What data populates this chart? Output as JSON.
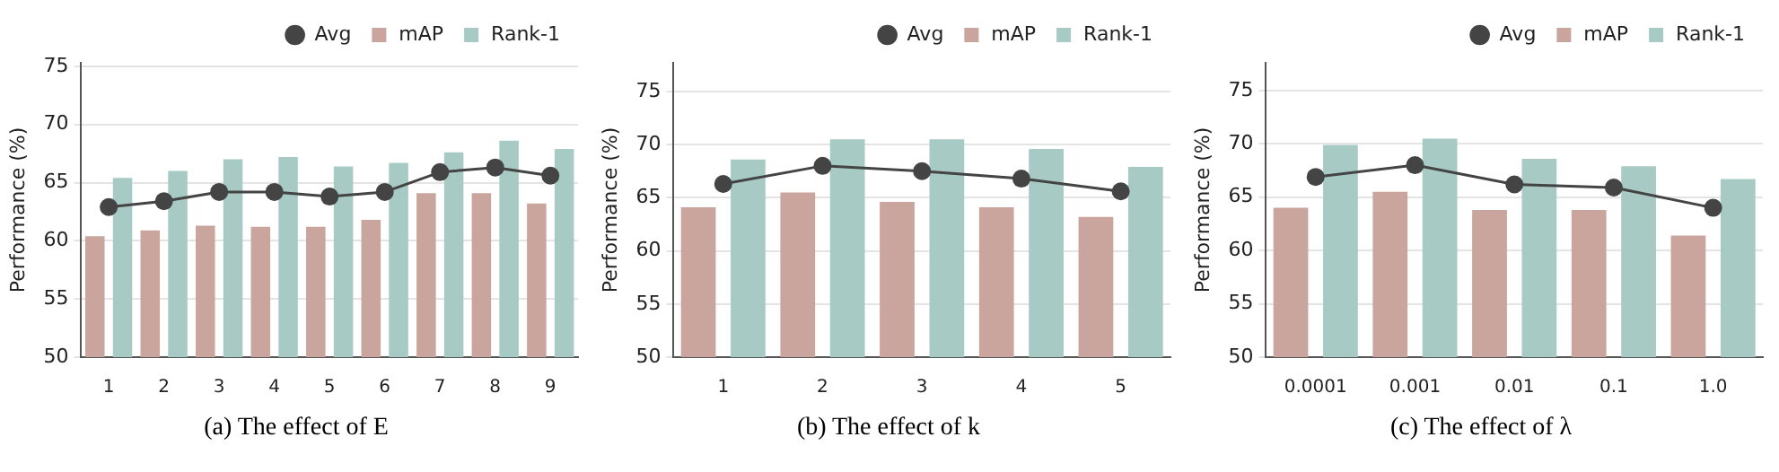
{
  "chart_data": [
    {
      "type": "bar",
      "title": "(a) The effect of E",
      "ylabel": "Performance (%)",
      "categories": [
        "1",
        "2",
        "3",
        "4",
        "5",
        "6",
        "7",
        "8",
        "9"
      ],
      "series": [
        {
          "name": "Avg",
          "type": "line",
          "color": "#444444",
          "values": [
            62.9,
            63.4,
            64.2,
            64.2,
            63.8,
            64.2,
            65.9,
            66.3,
            65.6
          ]
        },
        {
          "name": "mAP",
          "color": "#c9a59d",
          "values": [
            60.4,
            60.9,
            61.3,
            61.2,
            61.2,
            61.8,
            64.1,
            64.1,
            63.2
          ]
        },
        {
          "name": "Rank-1",
          "color": "#a7cbc4",
          "values": [
            65.4,
            66.0,
            67.0,
            67.2,
            66.4,
            66.7,
            67.6,
            68.6,
            67.9
          ]
        }
      ],
      "ylim": [
        50,
        75.3
      ],
      "yticks": [
        50,
        55,
        60,
        65,
        70,
        75
      ],
      "grid": "y",
      "legend": "top right",
      "marker": "circle"
    },
    {
      "type": "bar",
      "title": "(b) The effect of k",
      "ylabel": "Performance (%)",
      "categories": [
        "1",
        "2",
        "3",
        "4",
        "5"
      ],
      "series": [
        {
          "name": "Avg",
          "type": "line",
          "color": "#444444",
          "values": [
            66.3,
            68.0,
            67.5,
            66.8,
            65.6
          ]
        },
        {
          "name": "mAP",
          "color": "#c9a59d",
          "values": [
            64.1,
            65.5,
            64.6,
            64.1,
            63.2
          ]
        },
        {
          "name": "Rank-1",
          "color": "#a7cbc4",
          "values": [
            68.6,
            70.5,
            70.5,
            69.6,
            67.9
          ]
        }
      ],
      "ylim": [
        50,
        77.7
      ],
      "yticks": [
        50,
        55,
        60,
        65,
        70,
        75
      ],
      "grid": "y",
      "legend": "top right",
      "marker": "circle"
    },
    {
      "type": "bar",
      "title": "(c) The effect of λ",
      "ylabel": "Performance (%)",
      "categories": [
        "0.0001",
        "0.001",
        "0.01",
        "0.1",
        "1.0"
      ],
      "series": [
        {
          "name": "Avg",
          "type": "line",
          "color": "#444444",
          "values": [
            66.9,
            68.0,
            66.2,
            65.9,
            64.0
          ]
        },
        {
          "name": "mAP",
          "color": "#c9a59d",
          "values": [
            64.0,
            65.5,
            63.8,
            63.8,
            61.4
          ]
        },
        {
          "name": "Rank-1",
          "color": "#a7cbc4",
          "values": [
            69.9,
            70.5,
            68.6,
            67.9,
            66.7
          ]
        }
      ],
      "ylim": [
        50,
        77.6
      ],
      "yticks": [
        50,
        55,
        60,
        65,
        70,
        75
      ],
      "grid": "y",
      "legend": "top right",
      "marker": "circle"
    }
  ]
}
